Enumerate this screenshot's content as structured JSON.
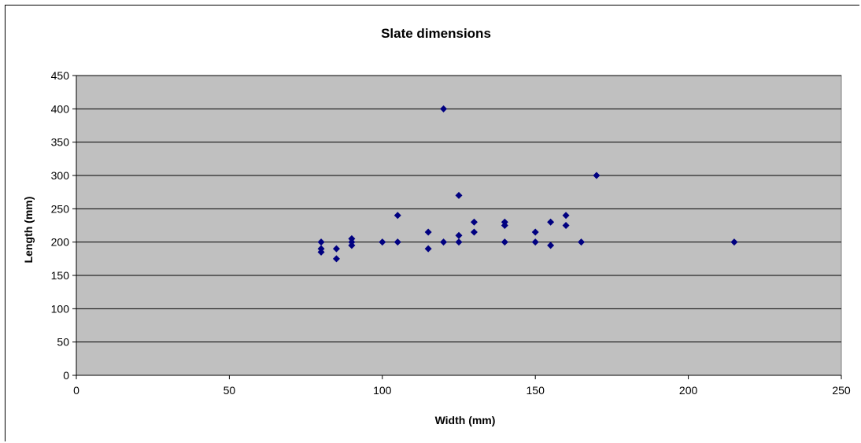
{
  "chart_data": {
    "type": "scatter",
    "title": "Slate dimensions",
    "xlabel": "Width (mm)",
    "ylabel": "Length (mm)",
    "xlim": [
      0,
      250
    ],
    "ylim": [
      0,
      450
    ],
    "x_ticks": [
      0,
      50,
      100,
      150,
      200,
      250
    ],
    "y_ticks": [
      0,
      50,
      100,
      150,
      200,
      250,
      300,
      350,
      400,
      450
    ],
    "grid": "horizontal",
    "plot_background": "#c0c0c0",
    "marker_color": "#000080",
    "marker": "diamond",
    "points": [
      {
        "x": 80,
        "y": 200
      },
      {
        "x": 80,
        "y": 190
      },
      {
        "x": 80,
        "y": 185
      },
      {
        "x": 85,
        "y": 190
      },
      {
        "x": 85,
        "y": 175
      },
      {
        "x": 90,
        "y": 205
      },
      {
        "x": 90,
        "y": 200
      },
      {
        "x": 90,
        "y": 195
      },
      {
        "x": 100,
        "y": 200
      },
      {
        "x": 105,
        "y": 240
      },
      {
        "x": 105,
        "y": 200
      },
      {
        "x": 115,
        "y": 215
      },
      {
        "x": 115,
        "y": 190
      },
      {
        "x": 120,
        "y": 400
      },
      {
        "x": 120,
        "y": 200
      },
      {
        "x": 125,
        "y": 270
      },
      {
        "x": 125,
        "y": 210
      },
      {
        "x": 125,
        "y": 200
      },
      {
        "x": 130,
        "y": 230
      },
      {
        "x": 130,
        "y": 215
      },
      {
        "x": 140,
        "y": 230
      },
      {
        "x": 140,
        "y": 225
      },
      {
        "x": 140,
        "y": 200
      },
      {
        "x": 150,
        "y": 215
      },
      {
        "x": 150,
        "y": 200
      },
      {
        "x": 155,
        "y": 230
      },
      {
        "x": 155,
        "y": 195
      },
      {
        "x": 160,
        "y": 240
      },
      {
        "x": 160,
        "y": 225
      },
      {
        "x": 165,
        "y": 200
      },
      {
        "x": 170,
        "y": 300
      },
      {
        "x": 215,
        "y": 200
      }
    ]
  }
}
